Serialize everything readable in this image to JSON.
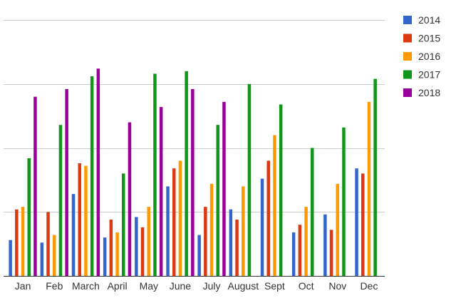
{
  "chart_data": {
    "type": "bar",
    "title": "",
    "xlabel": "",
    "ylabel": "",
    "grid": true,
    "legend_position": "right",
    "ylim": [
      0,
      100
    ],
    "categories": [
      "Jan",
      "Feb",
      "March",
      "April",
      "May",
      "June",
      "July",
      "August",
      "Sept",
      "Oct",
      "Nov",
      "Dec"
    ],
    "series": [
      {
        "name": "2014",
        "color": "#3366cc",
        "values": [
          14,
          13,
          32,
          15,
          23,
          35,
          16,
          26,
          38,
          17,
          24,
          42
        ]
      },
      {
        "name": "2015",
        "color": "#dc3912",
        "values": [
          26,
          25,
          44,
          22,
          19,
          42,
          27,
          22,
          45,
          20,
          18,
          40
        ]
      },
      {
        "name": "2016",
        "color": "#ff9900",
        "values": [
          27,
          16,
          43,
          17,
          27,
          45,
          36,
          35,
          55,
          27,
          36,
          68
        ]
      },
      {
        "name": "2017",
        "color": "#109618",
        "values": [
          46,
          59,
          78,
          40,
          79,
          80,
          59,
          75,
          67,
          50,
          58,
          77
        ]
      },
      {
        "name": "2018",
        "color": "#990099",
        "values": [
          70,
          73,
          81,
          60,
          66,
          73,
          68,
          null,
          null,
          null,
          null,
          null
        ]
      }
    ]
  }
}
